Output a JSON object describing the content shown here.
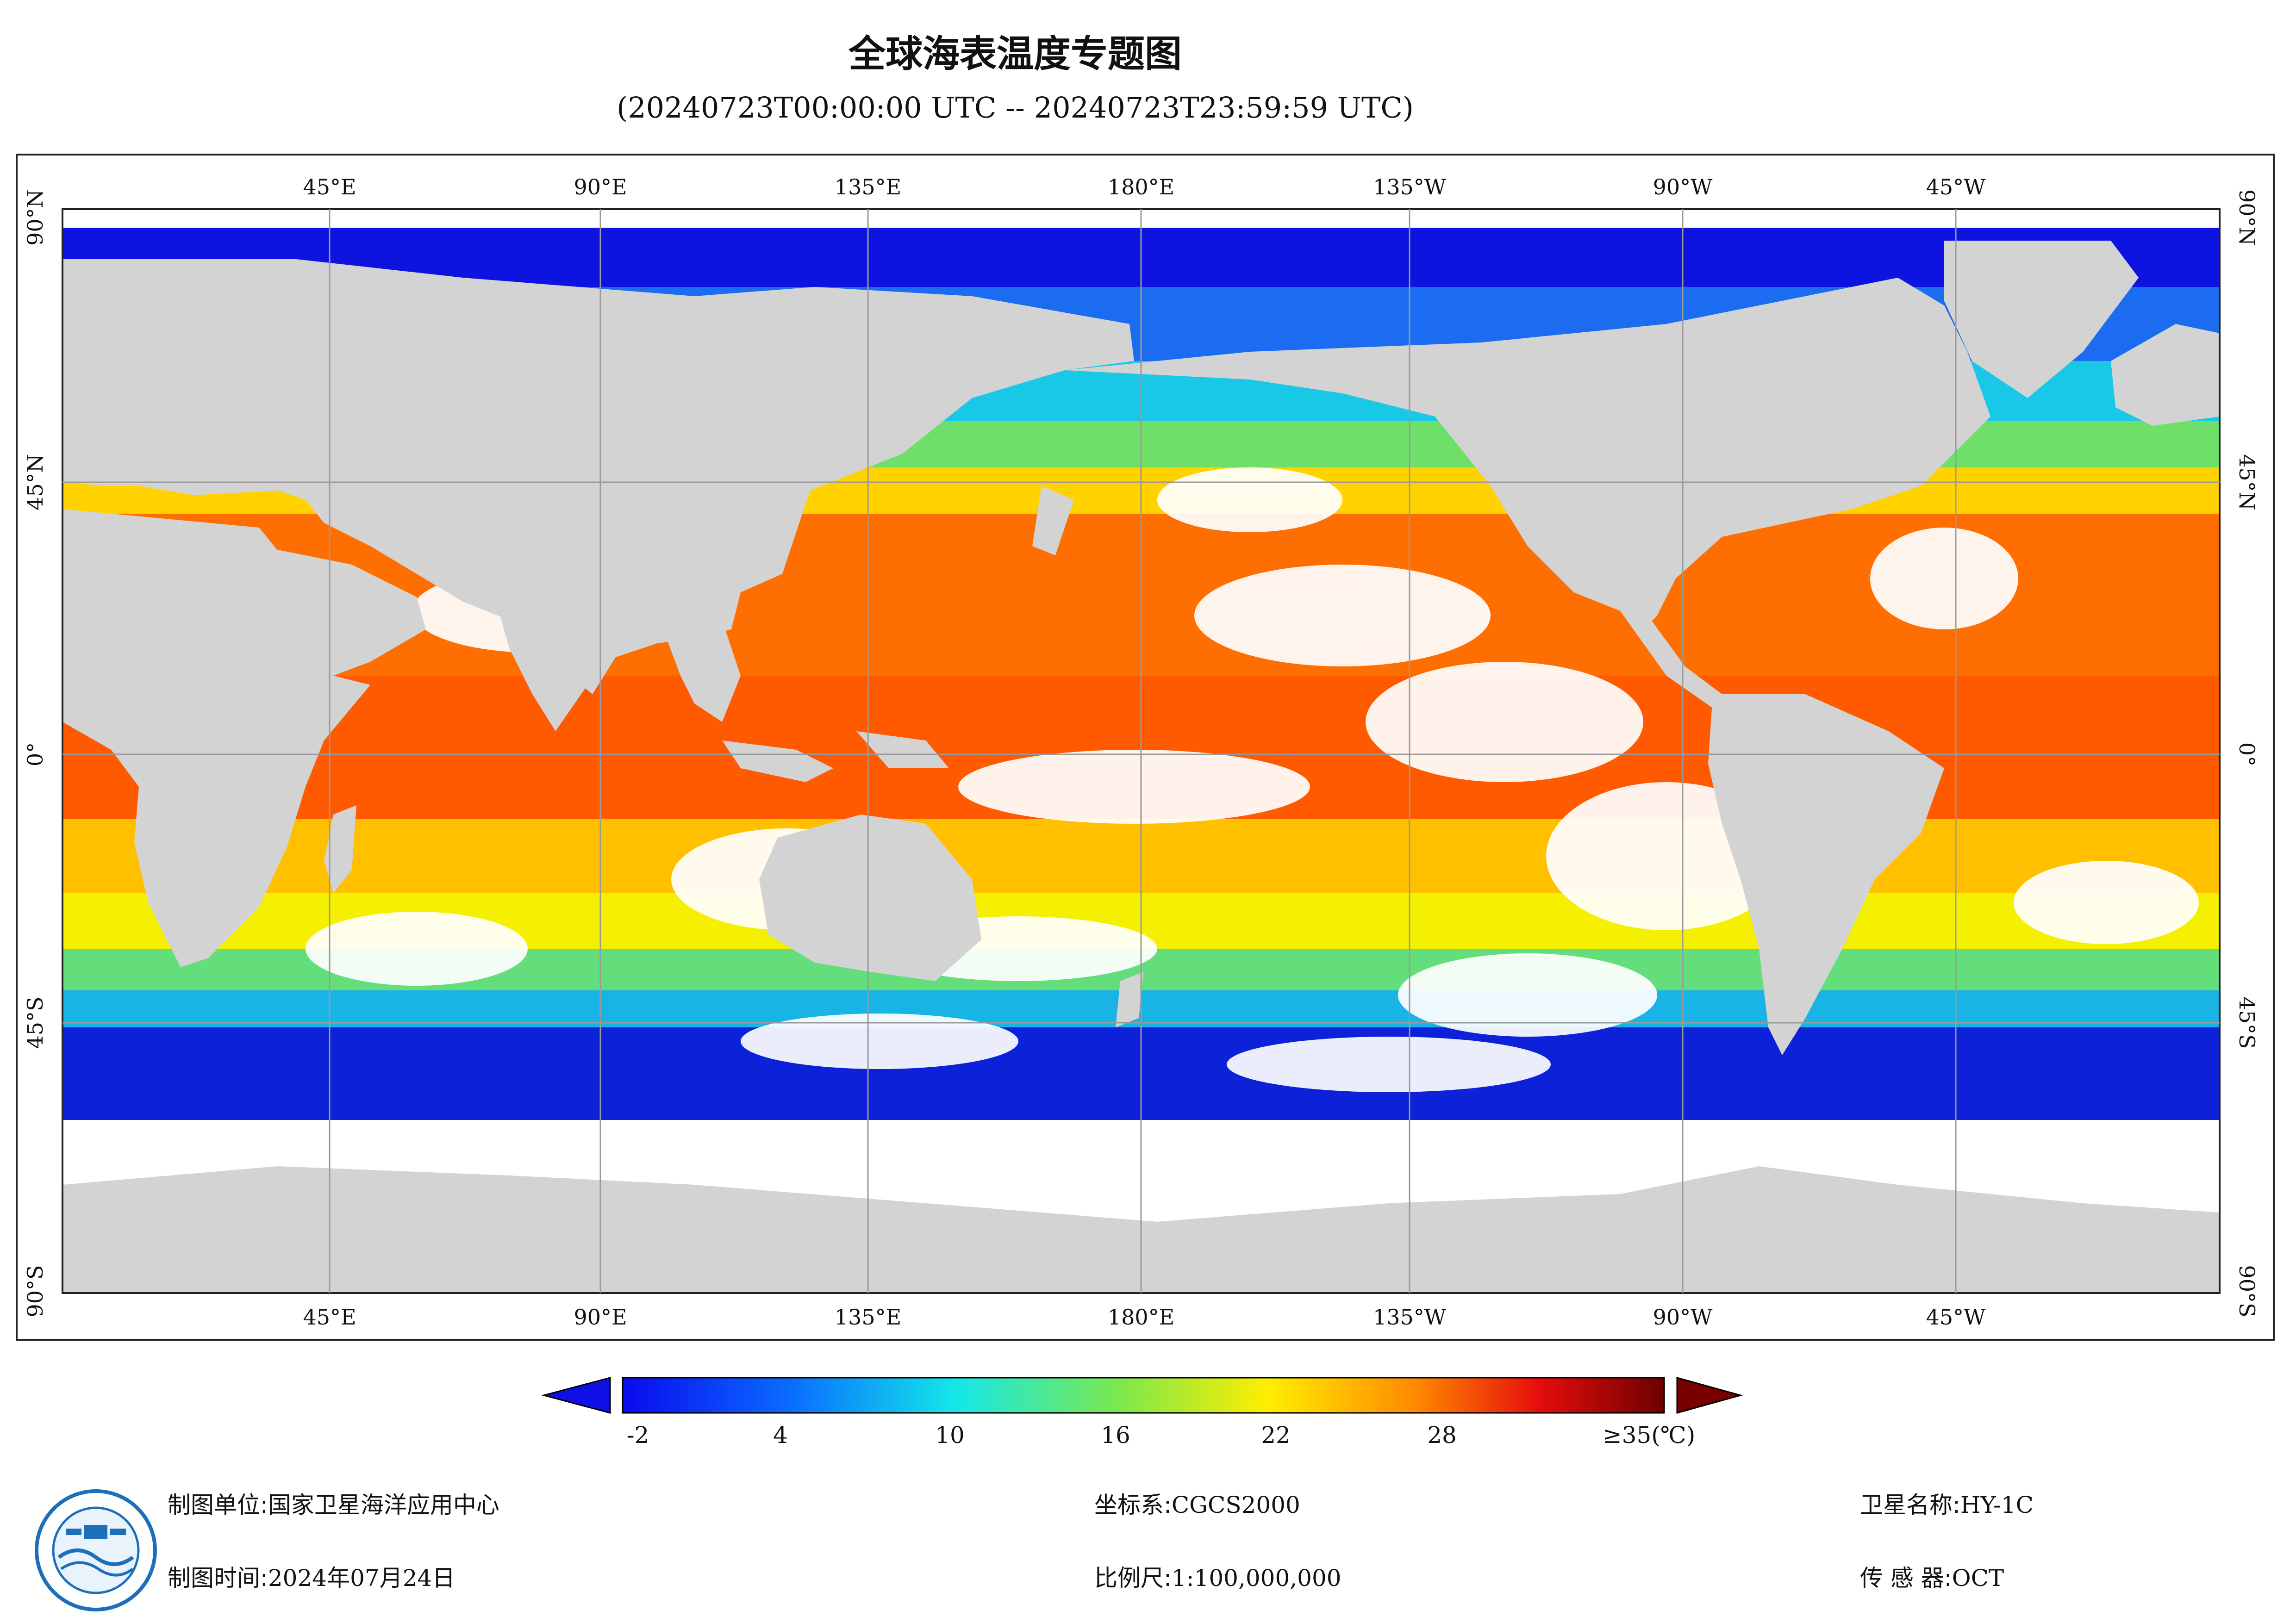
{
  "title": "全球海表温度专题图",
  "subtitle": "(20240723T00:00:00 UTC -- 20240723T23:59:59 UTC)",
  "map": {
    "top_lon_labels": [
      "45°E",
      "90°E",
      "135°E",
      "180°E",
      "135°W",
      "90°W",
      "45°W"
    ],
    "bottom_lon_labels": [
      "45°E",
      "90°E",
      "135°E",
      "180°E",
      "135°W",
      "90°W",
      "45°W"
    ],
    "left_lat_labels": [
      "90°N",
      "45°N",
      "0°",
      "45°S",
      "90°S"
    ],
    "right_lat_labels": [
      "90°N",
      "45°N",
      "0°",
      "45°S",
      "90°S"
    ],
    "colors": {
      "land": "#d3d3d3",
      "no_data": "#ffffff",
      "grid": "#9a9a9a"
    }
  },
  "colorbar": {
    "labels": [
      "-2",
      "4",
      "10",
      "16",
      "22",
      "28",
      "≥35(℃)"
    ],
    "min": -2,
    "max": 35,
    "unit": "℃",
    "under_color": "#1010e6",
    "over_color": "#7a0000"
  },
  "footer": {
    "org_key": "制图单位:",
    "org_val": "国家卫星海洋应用中心",
    "time_key": "制图时间:",
    "time_val": "2024年07月24日",
    "crs_key": "坐标系:",
    "crs_val": "CGCS2000",
    "scale_key": "比例尺:",
    "scale_val": "1:100,000,000",
    "sat_key": "卫星名称:",
    "sat_val": "HY-1C",
    "sensor_key": "传 感 器:",
    "sensor_val": "OCT"
  },
  "logo_icon": "nsoas-logo-icon"
}
